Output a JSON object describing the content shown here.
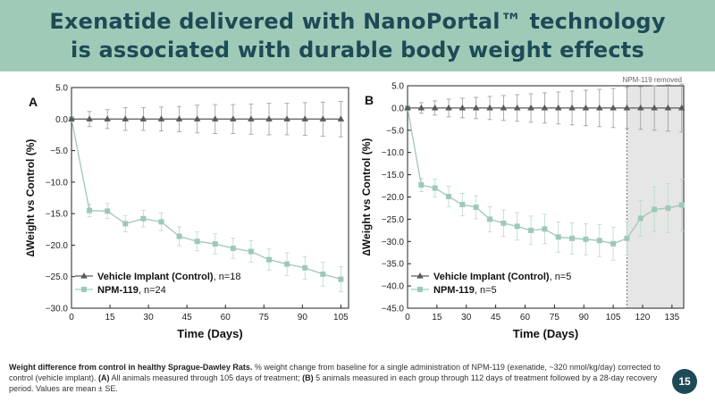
{
  "header": {
    "title_line1": "Exenatide delivered with NanoPortal™ technology",
    "title_line2": "is associated with durable body weight effects"
  },
  "colors": {
    "banner_bg": "#9fcab7",
    "title_text": "#1e4a57",
    "vehicle_series": "#5a5a5a",
    "npm_series": "#9ec9b6",
    "shaded_region": "#e6e6e6",
    "page_badge": "#1e4a57"
  },
  "chart_data": [
    {
      "type": "line",
      "panel_label": "A",
      "title": "",
      "xlabel": "Time (Days)",
      "ylabel": "∆Weight vs Control (%)",
      "xlim": [
        0,
        108
      ],
      "ylim": [
        -30,
        5
      ],
      "xticks": [
        0,
        15,
        30,
        45,
        60,
        75,
        90,
        105
      ],
      "yticks": [
        5,
        0,
        -5,
        -10,
        -15,
        -20,
        -25,
        -30
      ],
      "ytick_labels": [
        "5.0",
        "0.0",
        "−5.0",
        "−10.0",
        "−15.0",
        "−20.0",
        "−25.0",
        "−30.0"
      ],
      "legend_position": "bottom-left",
      "series": [
        {
          "name": "Vehicle Implant (Control)",
          "n_label": ", n=18",
          "marker": "triangle",
          "x": [
            0,
            7,
            14,
            21,
            28,
            35,
            42,
            49,
            56,
            63,
            70,
            77,
            84,
            91,
            98,
            105
          ],
          "values": [
            0,
            0,
            0,
            0,
            0,
            0,
            0,
            0,
            0,
            0,
            0,
            0,
            0,
            0,
            0,
            0
          ],
          "errors": [
            0.3,
            1.2,
            1.5,
            1.8,
            1.8,
            1.9,
            2.0,
            2.2,
            2.3,
            2.3,
            2.4,
            2.5,
            2.5,
            2.6,
            2.7,
            2.8
          ]
        },
        {
          "name": "NPM-119",
          "n_label": ", n=24",
          "marker": "square",
          "x": [
            0,
            7,
            14,
            21,
            28,
            35,
            42,
            49,
            56,
            63,
            70,
            77,
            84,
            91,
            98,
            105
          ],
          "values": [
            0,
            -14.5,
            -14.6,
            -16.6,
            -15.8,
            -16.3,
            -18.6,
            -19.4,
            -19.8,
            -20.5,
            -21.0,
            -22.3,
            -23.0,
            -23.6,
            -24.6,
            -25.4
          ],
          "errors": [
            0.3,
            1.0,
            1.2,
            1.3,
            1.3,
            1.4,
            1.5,
            1.5,
            1.6,
            1.6,
            1.7,
            1.7,
            1.8,
            1.8,
            1.9,
            2.0
          ]
        }
      ]
    },
    {
      "type": "line",
      "panel_label": "B",
      "title": "",
      "xlabel": "Time (Days)",
      "ylabel": "∆Weight vs Control (%)",
      "xlim": [
        0,
        141
      ],
      "ylim": [
        -45,
        5
      ],
      "xticks": [
        0,
        15,
        30,
        45,
        60,
        75,
        90,
        105,
        120,
        135
      ],
      "yticks": [
        5,
        0,
        -5,
        -10,
        -15,
        -20,
        -25,
        -30,
        -35,
        -40,
        -45
      ],
      "ytick_labels": [
        "5.0",
        "0.0",
        "−5.0",
        "−10.0",
        "−15.0",
        "−20.0",
        "−25.0",
        "−30.0",
        "−35.0",
        "−40.0",
        "−45.0"
      ],
      "legend_position": "bottom-left",
      "shaded_region": {
        "from": 112,
        "to": 141,
        "label": "NPM-119 removed"
      },
      "series": [
        {
          "name": "Vehicle Implant (Control)",
          "n_label": ", n=5",
          "marker": "triangle",
          "x": [
            0,
            7,
            14,
            21,
            28,
            35,
            42,
            49,
            56,
            63,
            70,
            77,
            84,
            91,
            98,
            105,
            112,
            119,
            126,
            133,
            140
          ],
          "values": [
            0,
            0,
            0,
            0,
            0,
            0,
            0,
            0,
            0,
            0,
            0,
            0,
            0,
            0,
            0,
            0,
            0,
            0,
            0,
            0,
            0
          ],
          "errors": [
            0.3,
            1.2,
            1.6,
            2.0,
            2.2,
            2.4,
            2.6,
            2.8,
            3.0,
            3.2,
            3.4,
            3.6,
            3.8,
            4.0,
            4.2,
            4.4,
            4.6,
            4.8,
            5.0,
            5.2,
            5.4
          ]
        },
        {
          "name": "NPM-119",
          "n_label": ", n=5",
          "marker": "square",
          "x": [
            0,
            7,
            14,
            21,
            28,
            35,
            42,
            49,
            56,
            63,
            70,
            77,
            84,
            91,
            98,
            105,
            112,
            119,
            126,
            133,
            140
          ],
          "values": [
            0,
            -17.3,
            -18.0,
            -19.9,
            -21.7,
            -22.3,
            -25.0,
            -25.9,
            -26.6,
            -27.5,
            -27.2,
            -29.0,
            -29.3,
            -29.5,
            -29.8,
            -30.5,
            -29.3,
            -24.8,
            -22.8,
            -22.5,
            -21.8
          ],
          "errors": [
            0.3,
            1.5,
            2.0,
            2.3,
            2.5,
            2.6,
            2.8,
            3.0,
            3.1,
            3.2,
            3.3,
            3.4,
            3.5,
            3.5,
            3.6,
            3.7,
            3.8,
            4.0,
            5.0,
            5.5,
            5.8
          ]
        }
      ]
    }
  ],
  "caption": {
    "bold_lead": "Weight difference from control in healthy Sprague-Dawley Rats.",
    "text_1": " % weight change from baseline for a single administration of NPM-119 (exenatide, ~320 nmol/kg/day) corrected to control (vehicle implant). ",
    "bold_a": "(A)",
    "text_2": " All animals measured through 105 days of treatment; ",
    "bold_b": "(B)",
    "text_3": " 5 animals measured in each group through 112 days of treatment followed by a 28-day recovery period. Values are mean ± SE."
  },
  "page_number": "15"
}
